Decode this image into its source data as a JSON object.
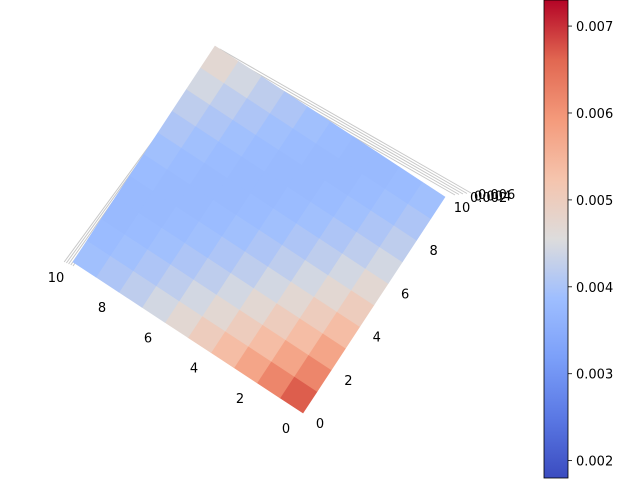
{
  "chart_data": {
    "type": "surface3d",
    "colormap": "coolwarm",
    "x": [
      0,
      1,
      2,
      3,
      4,
      5,
      6,
      7,
      8,
      9,
      10
    ],
    "y": [
      0,
      1,
      2,
      3,
      4,
      5,
      6,
      7,
      8,
      9,
      10
    ],
    "z_formula": "0.0072 - 0.00055*(x+y) + 0.000022*(x+y)^2",
    "z_range": [
      0.0018,
      0.0073
    ],
    "x_tick_labels": [
      "0",
      "2",
      "4",
      "6",
      "8",
      "10"
    ],
    "y_tick_labels": [
      "0",
      "2",
      "4",
      "6",
      "8",
      "10"
    ],
    "z_tick_labels_overlapping": [
      "0.002",
      "0.004",
      "0.006"
    ],
    "colorbar": {
      "tick_values": [
        0.002,
        0.003,
        0.004,
        0.005,
        0.006,
        0.007
      ],
      "tick_labels": [
        "0.002",
        "0.003",
        "0.004",
        "0.005",
        "0.006",
        "0.007"
      ]
    },
    "grid": true,
    "view": "top-down, rotated so x=0,y=0 corner is at bottom"
  }
}
